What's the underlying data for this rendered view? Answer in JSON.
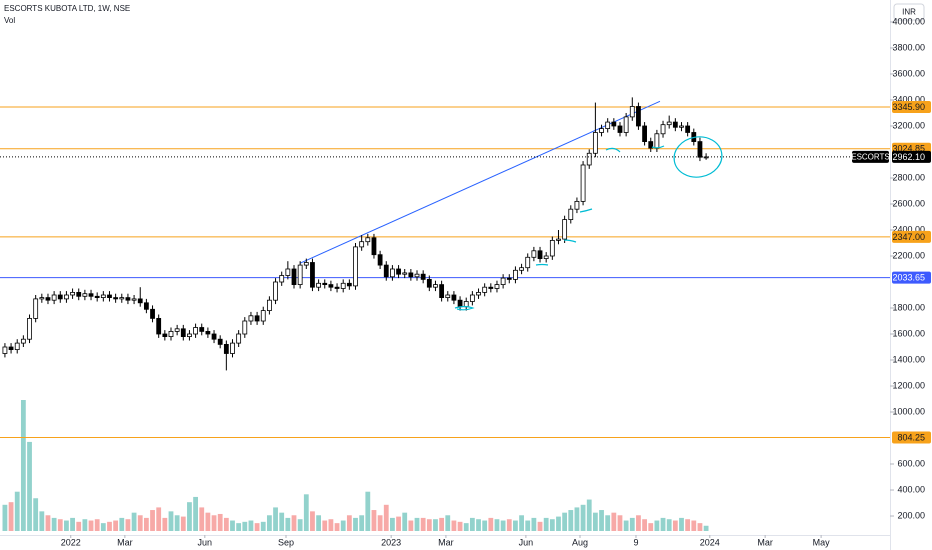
{
  "header": {
    "title": "ESCORTS KUBOTA LTD, 1W, NSE",
    "volume_label": "Vol",
    "currency": "INR"
  },
  "chart_data": {
    "type": "candlestick",
    "xlim": [
      -0.8,
      143.9
    ],
    "xticks": [
      {
        "value": 10.7,
        "label": "2022"
      },
      {
        "value": 19.5,
        "label": "Mar"
      },
      {
        "value": 32.5,
        "label": "Jun"
      },
      {
        "value": 45.7,
        "label": "Sep"
      },
      {
        "value": 62.8,
        "label": "2023"
      },
      {
        "value": 71.7,
        "label": "Mar"
      },
      {
        "value": 84.7,
        "label": "Jun"
      },
      {
        "value": 93.5,
        "label": "Aug"
      },
      {
        "value": 102.6,
        "label": "9"
      },
      {
        "value": 114.6,
        "label": "2024"
      },
      {
        "value": 123.6,
        "label": "Mar"
      },
      {
        "value": 132.7,
        "label": "May"
      }
    ],
    "ylim": [
      54,
      4169
    ],
    "yticks": [
      {
        "value": 4000,
        "label": "4000.00"
      },
      {
        "value": 3800,
        "label": "3800.00"
      },
      {
        "value": 3600,
        "label": "3600.00"
      },
      {
        "value": 3400,
        "label": "3400.00"
      },
      {
        "value": 3200,
        "label": "3200.00"
      },
      {
        "value": 2800,
        "label": "2800.00"
      },
      {
        "value": 2600,
        "label": "2600.00"
      },
      {
        "value": 2400,
        "label": "2400.00"
      },
      {
        "value": 2200,
        "label": "2200.00"
      },
      {
        "value": 1800,
        "label": "1800.00"
      },
      {
        "value": 1600,
        "label": "1600.00"
      },
      {
        "value": 1400,
        "label": "1400.00"
      },
      {
        "value": 1200,
        "label": "1200.00"
      },
      {
        "value": 1000,
        "label": "1000.00"
      },
      {
        "value": 600,
        "label": "600.00"
      },
      {
        "value": 400,
        "label": "400.00"
      },
      {
        "value": 200,
        "label": "200.00"
      }
    ],
    "bull_color": "#ffffff",
    "bear_color": "#000000",
    "series": [
      {
        "name": "ESCORTS",
        "last_label": "2962.10",
        "open": [
          1450,
          1500,
          1480,
          1530,
          1560,
          1720,
          1870,
          1880,
          1860,
          1900,
          1870,
          1900,
          1920,
          1890,
          1910,
          1890,
          1880,
          1900,
          1880,
          1870,
          1880,
          1860,
          1870,
          1840,
          1790,
          1720,
          1600,
          1580,
          1620,
          1640,
          1580,
          1600,
          1650,
          1620,
          1600,
          1560,
          1520,
          1450,
          1530,
          1600,
          1700,
          1740,
          1700,
          1780,
          1860,
          2000,
          2050,
          2100,
          1980,
          2130,
          2150,
          1960,
          1990,
          1980,
          1960,
          1950,
          1990,
          1970,
          2270,
          2310,
          2340,
          2210,
          2130,
          2040,
          2100,
          2060,
          2070,
          2040,
          2060,
          2020,
          1960,
          1980,
          1880,
          1900,
          1860,
          1810,
          1850,
          1900,
          1920,
          1960,
          1950,
          1980,
          2030,
          2020,
          2090,
          2110,
          2190,
          2240,
          2180,
          2200,
          2320,
          2330,
          2480,
          2560,
          2620,
          2900,
          2990,
          3150,
          3180,
          3230,
          3200,
          3150,
          3270,
          3350,
          3200,
          3080,
          3030,
          3140,
          3210,
          3230,
          3190,
          3200,
          3150,
          3080,
          2960
        ],
        "high": [
          1530,
          1530,
          1560,
          1590,
          1750,
          1900,
          1910,
          1910,
          1930,
          1930,
          1930,
          1950,
          1950,
          1940,
          1940,
          1920,
          1930,
          1930,
          1910,
          1910,
          1910,
          1900,
          1960,
          1870,
          1820,
          1750,
          1630,
          1650,
          1670,
          1670,
          1630,
          1680,
          1680,
          1650,
          1630,
          1590,
          1550,
          1560,
          1630,
          1730,
          1770,
          1770,
          1810,
          1890,
          2030,
          2080,
          2160,
          2130,
          2160,
          2180,
          2180,
          2020,
          2020,
          2010,
          1990,
          2020,
          2020,
          2300,
          2360,
          2370,
          2370,
          2240,
          2160,
          2130,
          2130,
          2100,
          2100,
          2090,
          2090,
          2050,
          2010,
          2010,
          1930,
          1930,
          1890,
          1880,
          1930,
          1950,
          1990,
          1990,
          2010,
          2060,
          2060,
          2120,
          2140,
          2220,
          2270,
          2270,
          2230,
          2350,
          2400,
          2510,
          2590,
          2650,
          2930,
          3020,
          3380,
          3210,
          3260,
          3260,
          3230,
          3300,
          3420,
          3380,
          3230,
          3110,
          3170,
          3240,
          3280,
          3260,
          3230,
          3230,
          3180,
          3110,
          2990
        ],
        "low": [
          1420,
          1450,
          1450,
          1500,
          1530,
          1690,
          1840,
          1830,
          1830,
          1840,
          1840,
          1870,
          1860,
          1860,
          1860,
          1850,
          1850,
          1850,
          1840,
          1840,
          1830,
          1830,
          1810,
          1760,
          1690,
          1570,
          1550,
          1550,
          1590,
          1550,
          1550,
          1570,
          1590,
          1570,
          1530,
          1490,
          1320,
          1420,
          1500,
          1570,
          1670,
          1670,
          1670,
          1750,
          1830,
          1970,
          2020,
          1950,
          1950,
          2100,
          1930,
          1930,
          1950,
          1930,
          1920,
          1920,
          1940,
          1940,
          2240,
          2280,
          2180,
          2100,
          2010,
          2010,
          2030,
          2030,
          2010,
          2010,
          1990,
          1930,
          1930,
          1850,
          1850,
          1830,
          1780,
          1780,
          1820,
          1870,
          1890,
          1920,
          1920,
          1950,
          1990,
          1990,
          2060,
          2080,
          2160,
          2150,
          2150,
          2170,
          2290,
          2300,
          2450,
          2530,
          2590,
          2870,
          2960,
          3120,
          3150,
          3170,
          3120,
          3120,
          3240,
          3170,
          3050,
          3000,
          3000,
          3110,
          3180,
          3160,
          3160,
          3120,
          3050,
          2930,
          2940
        ],
        "close": [
          1500,
          1480,
          1530,
          1560,
          1720,
          1870,
          1880,
          1860,
          1900,
          1870,
          1900,
          1920,
          1890,
          1910,
          1890,
          1880,
          1900,
          1880,
          1870,
          1880,
          1860,
          1870,
          1840,
          1790,
          1720,
          1600,
          1580,
          1620,
          1640,
          1580,
          1600,
          1650,
          1620,
          1600,
          1560,
          1520,
          1450,
          1530,
          1600,
          1700,
          1740,
          1700,
          1780,
          1860,
          2000,
          2050,
          2100,
          1980,
          2130,
          2150,
          1960,
          1990,
          1980,
          1960,
          1950,
          1990,
          1970,
          2270,
          2310,
          2340,
          2210,
          2130,
          2040,
          2100,
          2060,
          2070,
          2040,
          2060,
          2020,
          1960,
          1980,
          1880,
          1900,
          1860,
          1810,
          1850,
          1900,
          1920,
          1960,
          1950,
          1980,
          2030,
          2020,
          2090,
          2110,
          2190,
          2240,
          2180,
          2200,
          2320,
          2330,
          2480,
          2560,
          2620,
          2900,
          2990,
          3150,
          3180,
          3230,
          3200,
          3150,
          3270,
          3350,
          3200,
          3080,
          3030,
          3140,
          3210,
          3230,
          3190,
          3200,
          3150,
          3080,
          2960,
          2962.1
        ]
      }
    ],
    "volume": {
      "name": "Vol",
      "vlim": [
        0,
        100
      ],
      "up_color": "rgba(38,166,154,0.5)",
      "down_color": "rgba(239,83,80,0.5)",
      "values": [
        20,
        22,
        30,
        100,
        68,
        25,
        15,
        12,
        10,
        9,
        8,
        10,
        7,
        9,
        8,
        9,
        6,
        7,
        8,
        10,
        9,
        14,
        12,
        10,
        16,
        18,
        10,
        15,
        12,
        11,
        22,
        26,
        18,
        14,
        12,
        13,
        10,
        8,
        6,
        7,
        8,
        6,
        7,
        12,
        18,
        14,
        10,
        12,
        9,
        28,
        15,
        12,
        8,
        9,
        6,
        8,
        12,
        10,
        12,
        30,
        16,
        12,
        20,
        10,
        11,
        14,
        8,
        10,
        10,
        9,
        9,
        10,
        12,
        8,
        7,
        6,
        10,
        9,
        8,
        10,
        9,
        8,
        9,
        8,
        12,
        8,
        10,
        7,
        10,
        9,
        11,
        14,
        16,
        18,
        20,
        24,
        14,
        16,
        12,
        14,
        12,
        8,
        10,
        12,
        9,
        6,
        8,
        10,
        9,
        8,
        10,
        9,
        8,
        6,
        4
      ]
    },
    "levels": [
      {
        "value": 3345.9,
        "label": "3345.90",
        "color": "#f7a21b"
      },
      {
        "value": 3024.85,
        "label": "3024.85",
        "color": "#f7a21b"
      },
      {
        "value": 2347,
        "label": "2347.00",
        "color": "#f7a21b"
      },
      {
        "value": 2033.65,
        "label": "2033.65",
        "color": "#3d5afe"
      },
      {
        "value": 804.25,
        "label": "804.25",
        "color": "#f7a21b"
      }
    ],
    "trend_line": {
      "x": [
        48,
        106.5
      ],
      "y": [
        2145,
        3390
      ],
      "color": "#2962ff"
    }
  }
}
